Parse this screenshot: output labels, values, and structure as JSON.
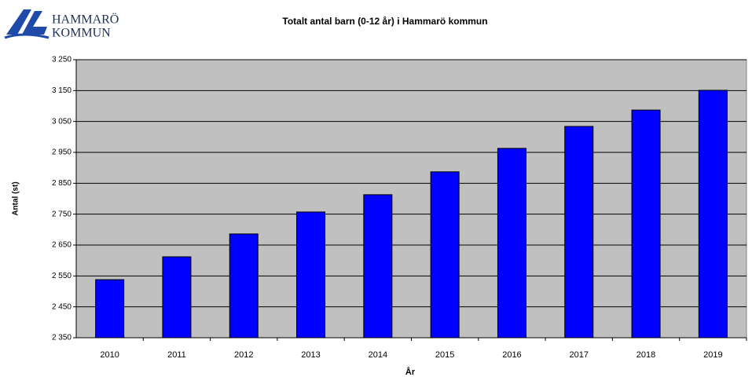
{
  "logo": {
    "line1": "HAMMARÖ",
    "line2": "KOMMUN"
  },
  "chart_data": {
    "type": "bar",
    "title": "Totalt antal barn (0-12 år) i Hammarö kommun",
    "x_label": "År",
    "y_label": "Antal (st)",
    "categories": [
      "2010",
      "2011",
      "2012",
      "2013",
      "2014",
      "2015",
      "2016",
      "2017",
      "2018",
      "2019"
    ],
    "values": [
      2538,
      2612,
      2686,
      2757,
      2813,
      2887,
      2963,
      3034,
      3087,
      3151
    ],
    "color": "#0000ff",
    "ylim": [
      2350,
      3250
    ],
    "yticks": [
      {
        "value": 2350,
        "label": "2 350"
      },
      {
        "value": 2450,
        "label": "2 450"
      },
      {
        "value": 2550,
        "label": "2 550"
      },
      {
        "value": 2650,
        "label": "2 650"
      },
      {
        "value": 2750,
        "label": "2 750"
      },
      {
        "value": 2850,
        "label": "2 850"
      },
      {
        "value": 2950,
        "label": "2 950"
      },
      {
        "value": 3050,
        "label": "3 050"
      },
      {
        "value": 3150,
        "label": "3 150"
      },
      {
        "value": 3250,
        "label": "3 250"
      }
    ],
    "grid": true
  }
}
